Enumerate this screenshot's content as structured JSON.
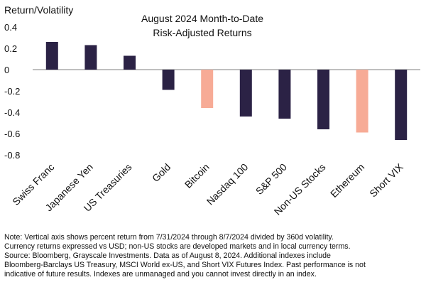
{
  "chart_data": {
    "type": "bar",
    "title": "August 2024 Month-to-Date Risk-Adjusted Returns",
    "title_lines": [
      "August 2024 Month-to-Date",
      "Risk-Adjusted Returns"
    ],
    "ylabel": "Return/Volatility",
    "xlabel": "",
    "categories": [
      "Swiss Franc",
      "Japanese Yen",
      "US Treasuries",
      "Gold",
      "Bitcoin",
      "Nasdaq 100",
      "S&P 500",
      "Non-US Stocks",
      "Ethereum",
      "Short VIX"
    ],
    "values": [
      0.26,
      0.23,
      0.13,
      -0.19,
      -0.36,
      -0.44,
      -0.46,
      -0.56,
      -0.59,
      -0.66
    ],
    "ylim": [
      -0.8,
      0.4
    ],
    "yticks": [
      0.4,
      0.2,
      0,
      -0.2,
      -0.4,
      -0.6,
      -0.8
    ],
    "ytick_labels": [
      "0.4",
      "0.2",
      "0",
      "-0.2",
      "-0.4",
      "-0.6",
      "-0.8"
    ],
    "colors": {
      "default": "#2b2245",
      "highlight": "#f7ab96",
      "axis": "#7f7f7f"
    },
    "highlighted": [
      "Bitcoin",
      "Ethereum"
    ],
    "grid": false,
    "legend": "none"
  },
  "notes": [
    "Note: Vertical axis shows percent return from 7/31/2024 through 8/7/2024 divided by 360d volatility.",
    "Currency returns expressed vs USD; non-US stocks are developed markets and in local currency terms.",
    "Source: Bloomberg, Grayscale Investments. Data as of August 8, 2024. Additional indexes include",
    "Bloomberg-Barclays US Treasury, MSCI World ex-US, and Short VIX Futures Index. Past performance is not",
    "indicative of future results. Indexes are unmanaged and you cannot invest directly in an index."
  ]
}
